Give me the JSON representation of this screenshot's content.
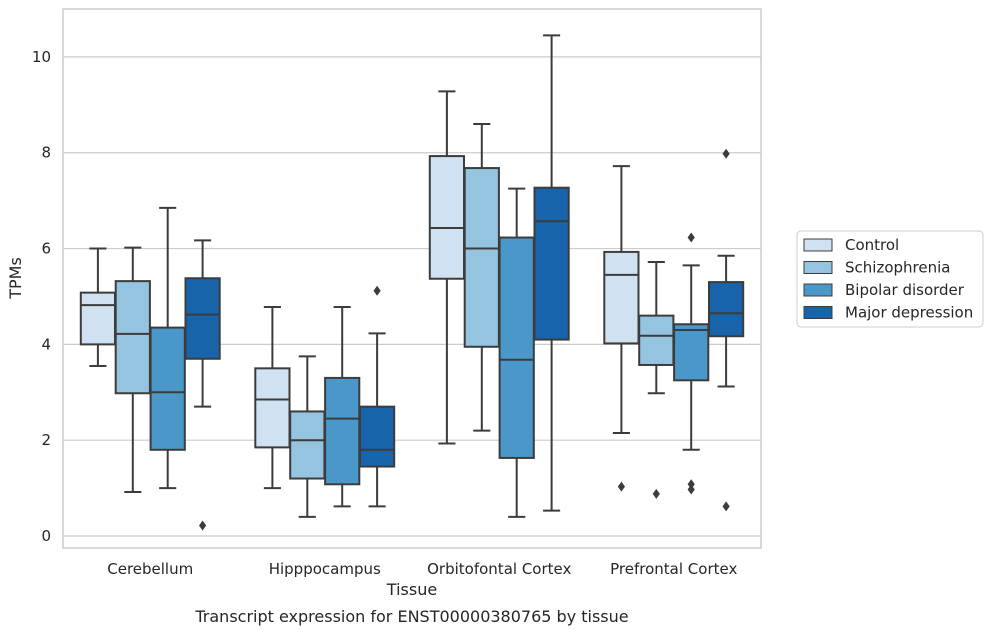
{
  "chart_data": {
    "type": "box",
    "caption": "Transcript expression for ENST00000380765 by tissue",
    "xlabel": "Tissue",
    "ylabel": "TPMs",
    "ylim": [
      -0.25,
      11.0
    ],
    "yticks": [
      0,
      2,
      4,
      6,
      8,
      10
    ],
    "grid": true,
    "legend_position": "right",
    "categories": [
      "Cerebellum",
      "Hipppocampus",
      "Orbitofontal Cortex",
      "Prefrontal Cortex"
    ],
    "series": [
      {
        "name": "Control",
        "color": "#d0e1f2",
        "boxes": [
          {
            "whislo": 3.55,
            "q1": 4.0,
            "med": 4.82,
            "q3": 5.08,
            "whishi": 6.0,
            "fliers": []
          },
          {
            "whislo": 1.0,
            "q1": 1.85,
            "med": 2.85,
            "q3": 3.5,
            "whishi": 4.78,
            "fliers": []
          },
          {
            "whislo": 1.93,
            "q1": 5.37,
            "med": 6.43,
            "q3": 7.93,
            "whishi": 9.28,
            "fliers": []
          },
          {
            "whislo": 2.15,
            "q1": 4.02,
            "med": 5.45,
            "q3": 5.93,
            "whishi": 7.72,
            "fliers": [
              1.03
            ]
          }
        ]
      },
      {
        "name": "Schizophrenia",
        "color": "#94c4df",
        "boxes": [
          {
            "whislo": 0.92,
            "q1": 2.98,
            "med": 4.22,
            "q3": 5.32,
            "whishi": 6.02,
            "fliers": []
          },
          {
            "whislo": 0.4,
            "q1": 1.2,
            "med": 2.0,
            "q3": 2.6,
            "whishi": 3.75,
            "fliers": []
          },
          {
            "whislo": 2.2,
            "q1": 3.95,
            "med": 6.0,
            "q3": 7.68,
            "whishi": 8.6,
            "fliers": []
          },
          {
            "whislo": 2.98,
            "q1": 3.57,
            "med": 4.18,
            "q3": 4.6,
            "whishi": 5.72,
            "fliers": [
              0.88
            ]
          }
        ]
      },
      {
        "name": "Bipolar disorder",
        "color": "#4a98c9",
        "boxes": [
          {
            "whislo": 1.0,
            "q1": 1.8,
            "med": 3.0,
            "q3": 4.35,
            "whishi": 6.85,
            "fliers": []
          },
          {
            "whislo": 0.62,
            "q1": 1.08,
            "med": 2.45,
            "q3": 3.3,
            "whishi": 4.78,
            "fliers": []
          },
          {
            "whislo": 0.4,
            "q1": 1.63,
            "med": 3.68,
            "q3": 6.23,
            "whishi": 7.25,
            "fliers": []
          },
          {
            "whislo": 1.8,
            "q1": 3.25,
            "med": 4.3,
            "q3": 4.42,
            "whishi": 5.65,
            "fliers": [
              0.97,
              1.08,
              6.23
            ]
          }
        ]
      },
      {
        "name": "Major depression",
        "color": "#1764ab",
        "boxes": [
          {
            "whislo": 2.7,
            "q1": 3.7,
            "med": 4.62,
            "q3": 5.38,
            "whishi": 6.17,
            "fliers": [
              0.22
            ]
          },
          {
            "whislo": 0.62,
            "q1": 1.45,
            "med": 1.8,
            "q3": 2.7,
            "whishi": 4.23,
            "fliers": [
              5.12
            ]
          },
          {
            "whislo": 0.53,
            "q1": 4.1,
            "med": 6.57,
            "q3": 7.27,
            "whishi": 10.45,
            "fliers": []
          },
          {
            "whislo": 3.12,
            "q1": 4.17,
            "med": 4.65,
            "q3": 5.3,
            "whishi": 5.85,
            "fliers": [
              0.62,
              7.98
            ]
          }
        ]
      }
    ]
  }
}
